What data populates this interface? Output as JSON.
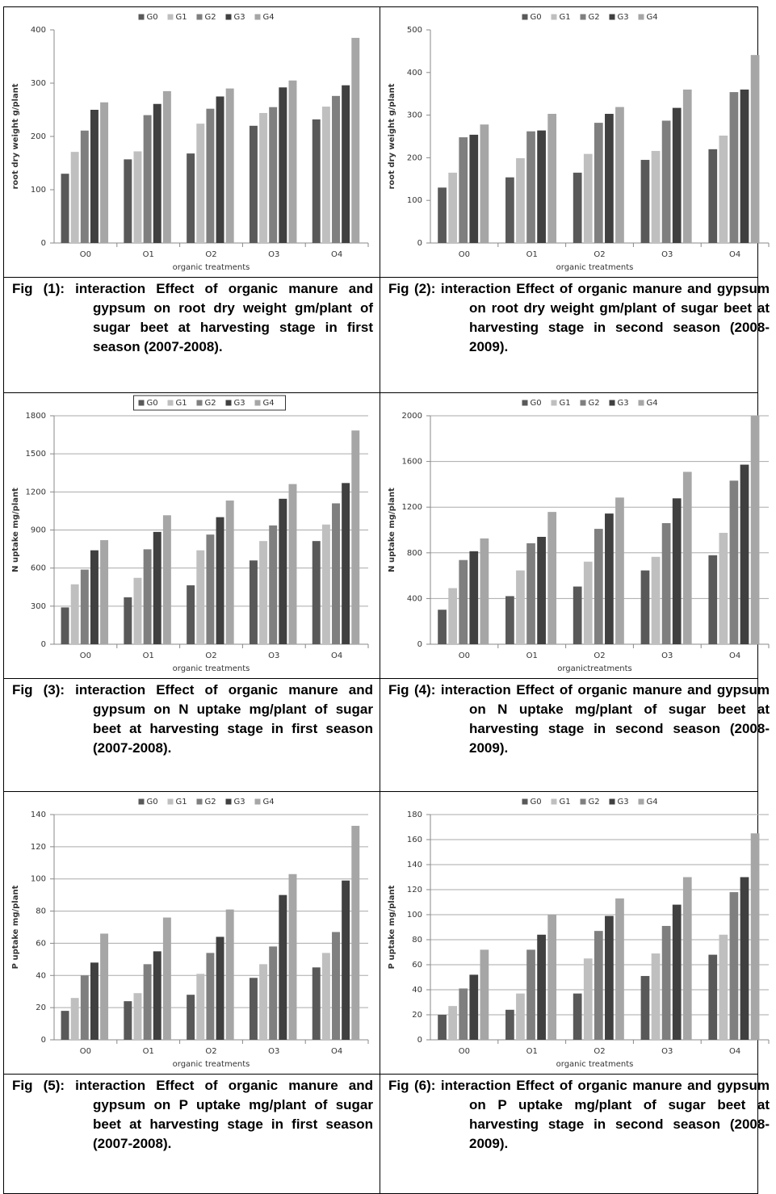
{
  "chart_data": [
    {
      "type": "bar",
      "ylabel": "root dry weight  g/plant",
      "xlabel": "organic treatments",
      "categories": [
        "O0",
        "O1",
        "O2",
        "O3",
        "O4"
      ],
      "ylim": [
        0,
        400
      ],
      "yticks": [
        0,
        100,
        200,
        300,
        400
      ],
      "grid": false,
      "legend": "top",
      "series": [
        {
          "name": "G0",
          "color": "#595959",
          "values": [
            130,
            157,
            168,
            220,
            232
          ]
        },
        {
          "name": "G1",
          "color": "#bfbfbf",
          "values": [
            171,
            172,
            224,
            244,
            256
          ]
        },
        {
          "name": "G2",
          "color": "#7f7f7f",
          "values": [
            211,
            240,
            252,
            255,
            276
          ]
        },
        {
          "name": "G3",
          "color": "#404040",
          "values": [
            250,
            261,
            275,
            292,
            296
          ]
        },
        {
          "name": "G4",
          "color": "#a6a6a6",
          "values": [
            264,
            285,
            290,
            305,
            385
          ]
        }
      ],
      "caption": "Fig (1): interaction Effect of organic manure and gypsum on root dry weight gm/plant of sugar beet at harvesting stage in first season (2007-2008)."
    },
    {
      "type": "bar",
      "ylabel": "root dry weight g/plant",
      "xlabel": "organic treatments",
      "categories": [
        "O0",
        "O1",
        "O2",
        "O3",
        "O4"
      ],
      "ylim": [
        0,
        500
      ],
      "yticks": [
        0,
        100,
        200,
        300,
        400,
        500
      ],
      "grid": false,
      "legend": "top",
      "series": [
        {
          "name": "G0",
          "color": "#595959",
          "values": [
            130,
            154,
            165,
            195,
            220
          ]
        },
        {
          "name": "G1",
          "color": "#bfbfbf",
          "values": [
            165,
            199,
            209,
            216,
            252
          ]
        },
        {
          "name": "G2",
          "color": "#7f7f7f",
          "values": [
            248,
            262,
            282,
            287,
            354
          ]
        },
        {
          "name": "G3",
          "color": "#404040",
          "values": [
            254,
            264,
            303,
            317,
            360
          ]
        },
        {
          "name": "G4",
          "color": "#a6a6a6",
          "values": [
            278,
            303,
            319,
            360,
            441
          ]
        }
      ],
      "caption": "Fig (2): interaction Effect of organic manure and gypsum on root dry weight gm/plant of sugar beet at harvesting stage in second season (2008-2009)."
    },
    {
      "type": "bar",
      "ylabel": "N uptake mg/plant",
      "xlabel": "organic treatments",
      "categories": [
        "O0",
        "O1",
        "O2",
        "O3",
        "O4"
      ],
      "ylim": [
        0,
        1800
      ],
      "yticks": [
        0,
        300,
        600,
        900,
        1200,
        1500,
        1800
      ],
      "grid": true,
      "legend": "top",
      "legend_box": true,
      "series": [
        {
          "name": "G0",
          "color": "#595959",
          "values": [
            290,
            370,
            464,
            660,
            813
          ]
        },
        {
          "name": "G1",
          "color": "#bfbfbf",
          "values": [
            472,
            523,
            740,
            813,
            943
          ]
        },
        {
          "name": "G2",
          "color": "#7f7f7f",
          "values": [
            588,
            748,
            864,
            936,
            1110
          ]
        },
        {
          "name": "G3",
          "color": "#404040",
          "values": [
            740,
            885,
            1001,
            1146,
            1270
          ]
        },
        {
          "name": "G4",
          "color": "#a6a6a6",
          "values": [
            820,
            1016,
            1132,
            1262,
            1684
          ]
        }
      ],
      "caption": "Fig (3): interaction Effect of organic manure and gypsum on N uptake mg/plant of sugar beet at harvesting stage in first season (2007-2008)."
    },
    {
      "type": "bar",
      "ylabel": "N uptake mg/plant",
      "xlabel": "organictreatments",
      "categories": [
        "O0",
        "O1",
        "O2",
        "O3",
        "O4"
      ],
      "ylim": [
        0,
        2000
      ],
      "yticks": [
        0,
        400,
        800,
        1200,
        1600,
        2000
      ],
      "grid": true,
      "legend": "top",
      "series": [
        {
          "name": "G0",
          "color": "#595959",
          "values": [
            302,
            421,
            505,
            646,
            779
          ]
        },
        {
          "name": "G1",
          "color": "#bfbfbf",
          "values": [
            491,
            646,
            723,
            765,
            975
          ]
        },
        {
          "name": "G2",
          "color": "#7f7f7f",
          "values": [
            737,
            884,
            1010,
            1060,
            1432
          ]
        },
        {
          "name": "G3",
          "color": "#404040",
          "values": [
            814,
            940,
            1144,
            1277,
            1572
          ]
        },
        {
          "name": "G4",
          "color": "#a6a6a6",
          "values": [
            926,
            1158,
            1284,
            1509,
            2000
          ]
        }
      ],
      "caption": "Fig (4): interaction Effect of organic manure and gypsum on N uptake mg/plant of sugar beet at harvesting stage in second season (2008-2009)."
    },
    {
      "type": "bar",
      "ylabel": "P uptake mg/plant",
      "xlabel": "organic treatments",
      "categories": [
        "O0",
        "O1",
        "O2",
        "O3",
        "O4"
      ],
      "ylim": [
        0,
        140
      ],
      "yticks": [
        0,
        20,
        40,
        60,
        80,
        100,
        120,
        140
      ],
      "grid": true,
      "legend": "top",
      "series": [
        {
          "name": "G0",
          "color": "#595959",
          "values": [
            18,
            24,
            28,
            38.5,
            45
          ]
        },
        {
          "name": "G1",
          "color": "#bfbfbf",
          "values": [
            26,
            29,
            41,
            47,
            54
          ]
        },
        {
          "name": "G2",
          "color": "#7f7f7f",
          "values": [
            40,
            47,
            54,
            58,
            67
          ]
        },
        {
          "name": "G3",
          "color": "#404040",
          "values": [
            48,
            55,
            64,
            90,
            99
          ]
        },
        {
          "name": "G4",
          "color": "#a6a6a6",
          "values": [
            66,
            76,
            81,
            103,
            133
          ]
        }
      ],
      "caption": "Fig (5): interaction Effect of organic manure and gypsum on P uptake mg/plant of sugar beet at harvesting stage in first season (2007-2008)."
    },
    {
      "type": "bar",
      "ylabel": "P uptake mg/plant",
      "xlabel": "organic treatments",
      "categories": [
        "O0",
        "O1",
        "O2",
        "O3",
        "O4"
      ],
      "ylim": [
        0,
        180
      ],
      "yticks": [
        0,
        20,
        40,
        60,
        80,
        100,
        120,
        140,
        160,
        180
      ],
      "grid": true,
      "legend": "top",
      "series": [
        {
          "name": "G0",
          "color": "#595959",
          "values": [
            20,
            24,
            37,
            51,
            68
          ]
        },
        {
          "name": "G1",
          "color": "#bfbfbf",
          "values": [
            27,
            37,
            65,
            69,
            84
          ]
        },
        {
          "name": "G2",
          "color": "#7f7f7f",
          "values": [
            41,
            72,
            87,
            91,
            118
          ]
        },
        {
          "name": "G3",
          "color": "#404040",
          "values": [
            52,
            84,
            99,
            108,
            130
          ]
        },
        {
          "name": "G4",
          "color": "#a6a6a6",
          "values": [
            72,
            100,
            113,
            130,
            165
          ]
        }
      ],
      "caption": "Fig (6): interaction Effect of organic manure and gypsum on P uptake mg/plant of sugar beet at harvesting stage in second season (2008-2009)."
    }
  ]
}
